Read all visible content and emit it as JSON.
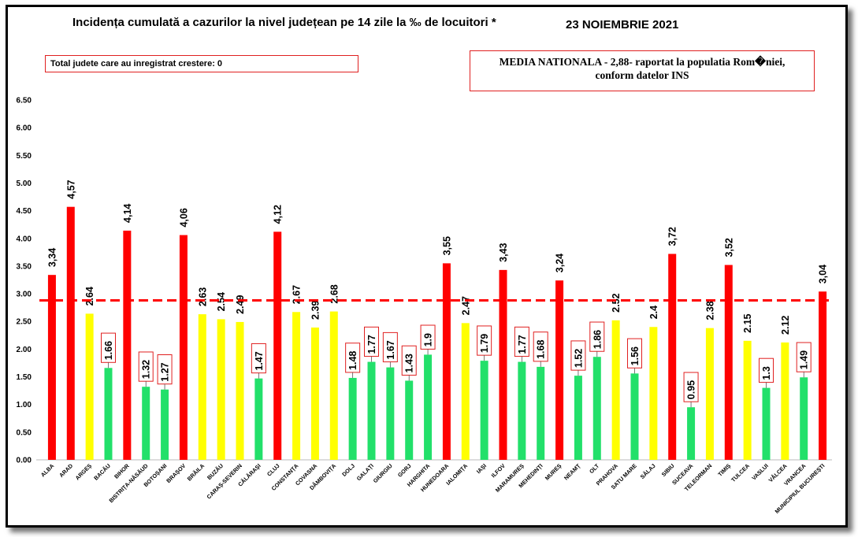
{
  "header": {
    "title": "Incidența cumulată a cazurilor la nivel județean pe 14 zile la ‰ de locuitori *",
    "date": "23 NOIEMBRIE 2021"
  },
  "notes": {
    "increase_box": "Total judete care au inregistrat crestere: 0",
    "media_line1": "MEDIA NATIONALA - 2,88-  raportat la populatia Rom�niei,",
    "media_line2": "conform datelor INS"
  },
  "colors": {
    "red": "#ff0000",
    "yellow": "#ffff00",
    "green": "#22e06a",
    "average_line": "#ff0000",
    "label_box_border": "#e02020"
  },
  "chart_data": {
    "type": "bar",
    "ylim": [
      0,
      6.5
    ],
    "yticks": [
      "0.00",
      "0.50",
      "1.00",
      "1.50",
      "2.00",
      "2.50",
      "3.00",
      "3.50",
      "4.00",
      "4.50",
      "5.00",
      "5.50",
      "6.00",
      "6.50"
    ],
    "grid": false,
    "average": 2.88,
    "categories": [
      "ALBA",
      "ARAD",
      "ARGEȘ",
      "BACĂU",
      "BIHOR",
      "BISTRIȚA-NĂSĂUD",
      "BOTOȘANI",
      "BRAȘOV",
      "BRĂILA",
      "BUZĂU",
      "CARAȘ-SEVERIN",
      "CĂLĂRAȘI",
      "CLUJ",
      "CONSTANȚA",
      "COVASNA",
      "DÂMBOVIȚA",
      "DOLJ",
      "GALAȚI",
      "GIURGIU",
      "GORJ",
      "HARGHITA",
      "HUNEDOARA",
      "IALOMIȚA",
      "IAȘI",
      "ILFOV",
      "MARAMUREȘ",
      "MEHEDINȚI",
      "MUREȘ",
      "NEAMȚ",
      "OLT",
      "PRAHOVA",
      "SATU MARE",
      "SĂLAJ",
      "SIBIU",
      "SUCEAVA",
      "TELEORMAN",
      "TIMIȘ",
      "TULCEA",
      "VASLUI",
      "VÂLCEA",
      "VRANCEA",
      "MUNICIPIUL BUCUREȘTI"
    ],
    "values": [
      3.34,
      4.57,
      2.64,
      1.66,
      4.14,
      1.32,
      1.27,
      4.06,
      2.63,
      2.54,
      2.49,
      1.47,
      4.12,
      2.67,
      2.39,
      2.68,
      1.48,
      1.77,
      1.67,
      1.43,
      1.9,
      3.55,
      2.47,
      1.79,
      3.43,
      1.77,
      1.68,
      3.24,
      1.52,
      1.86,
      2.52,
      1.56,
      2.4,
      3.72,
      0.95,
      2.38,
      3.52,
      2.15,
      1.3,
      2.12,
      1.49,
      3.04
    ],
    "labels": [
      "3,34",
      "4,57",
      "2.64",
      "1.66",
      "4,14",
      "1.32",
      "1.27",
      "4,06",
      "2.63",
      "2.54",
      "2.49",
      "1.47",
      "4,12",
      "2.67",
      "2.39",
      "2.68",
      "1.48",
      "1.77",
      "1.67",
      "1.43",
      "1.9",
      "3,55",
      "2.47",
      "1.79",
      "3,43",
      "1.77",
      "1.68",
      "3,24",
      "1.52",
      "1.86",
      "2.52",
      "1.56",
      "2.4",
      "3,72",
      "0.95",
      "2.38",
      "3,52",
      "2.15",
      "1.3",
      "2.12",
      "1.49",
      "3,04"
    ],
    "bar_colors": [
      "red",
      "red",
      "yellow",
      "green",
      "red",
      "green",
      "green",
      "red",
      "yellow",
      "yellow",
      "yellow",
      "green",
      "red",
      "yellow",
      "yellow",
      "yellow",
      "green",
      "green",
      "green",
      "green",
      "green",
      "red",
      "yellow",
      "green",
      "red",
      "green",
      "green",
      "red",
      "green",
      "green",
      "yellow",
      "green",
      "yellow",
      "red",
      "green",
      "yellow",
      "red",
      "yellow",
      "green",
      "yellow",
      "green",
      "red"
    ],
    "boxed_labels": [
      false,
      false,
      false,
      true,
      false,
      true,
      true,
      false,
      false,
      false,
      false,
      true,
      false,
      false,
      false,
      false,
      true,
      true,
      true,
      true,
      true,
      false,
      false,
      true,
      false,
      true,
      true,
      false,
      true,
      true,
      false,
      true,
      false,
      false,
      true,
      false,
      false,
      false,
      true,
      false,
      true,
      false
    ]
  }
}
